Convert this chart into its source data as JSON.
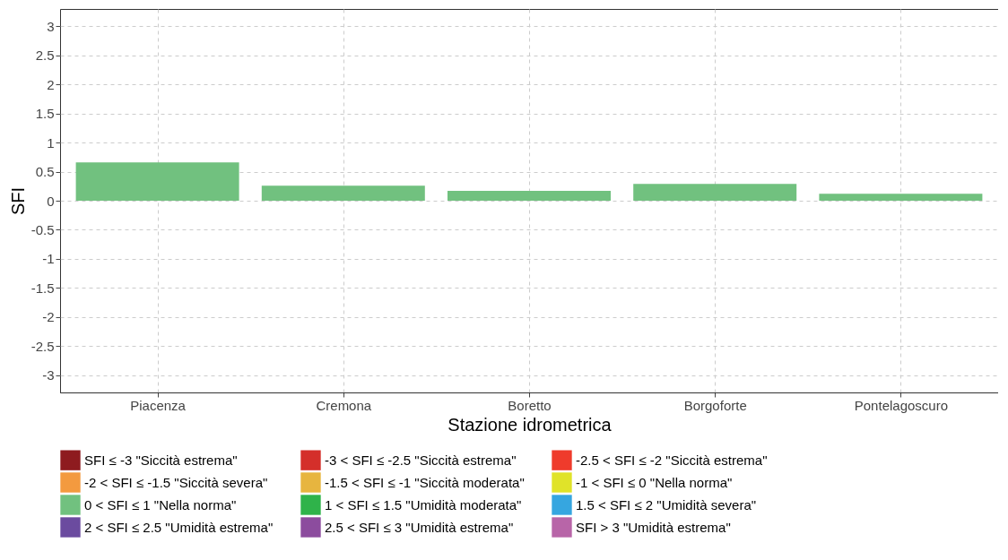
{
  "chart_data": {
    "type": "bar",
    "xlabel": "Stazione idrometrica",
    "ylabel": "SFI",
    "categories": [
      "Piacenza",
      "Cremona",
      "Boretto",
      "Borgoforte",
      "Pontelagoscuro"
    ],
    "series": [
      {
        "name": "SFI ≤ -3 \"Siccità estrema\"",
        "color": "#8e1b1f",
        "values": [
          null,
          null,
          null,
          null,
          null
        ]
      },
      {
        "name": "-3 < SFI ≤ -2.5 \"Siccità estrema\"",
        "color": "#d42f2a",
        "values": [
          null,
          null,
          null,
          null,
          null
        ]
      },
      {
        "name": "-2.5 < SFI ≤ -2 \"Siccità estrema\"",
        "color": "#ef3b2c",
        "values": [
          null,
          null,
          null,
          null,
          null
        ]
      },
      {
        "name": "-2 < SFI ≤ -1.5 \"Siccità severa\"",
        "color": "#f39a3f",
        "values": [
          null,
          null,
          null,
          null,
          null
        ]
      },
      {
        "name": "-1.5 < SFI ≤ -1 \"Siccità moderata\"",
        "color": "#e7b53f",
        "values": [
          null,
          null,
          null,
          null,
          null
        ]
      },
      {
        "name": "-1 < SFI ≤ 0 \"Nella norma\"",
        "color": "#e0e329",
        "values": [
          null,
          null,
          null,
          null,
          null
        ]
      },
      {
        "name": "0 < SFI ≤ 1 \"Nella norma\"",
        "color": "#71c17f",
        "values": [
          0.66,
          0.26,
          0.17,
          0.29,
          0.12
        ]
      },
      {
        "name": "1 < SFI ≤ 1.5 \"Umidità moderata\"",
        "color": "#2fb34a",
        "values": [
          null,
          null,
          null,
          null,
          null
        ]
      },
      {
        "name": "1.5 < SFI ≤ 2 \"Umidità severa\"",
        "color": "#36a6e0",
        "values": [
          null,
          null,
          null,
          null,
          null
        ]
      },
      {
        "name": "2 < SFI ≤ 2.5 \"Umidità estrema\"",
        "color": "#6b4b9f",
        "values": [
          null,
          null,
          null,
          null,
          null
        ]
      },
      {
        "name": "2.5 < SFI ≤ 3 \"Umidità estrema\"",
        "color": "#8c4c9e",
        "values": [
          null,
          null,
          null,
          null,
          null
        ]
      },
      {
        "name": "SFI > 3 \"Umidità estrema\"",
        "color": "#b865a8",
        "values": [
          null,
          null,
          null,
          null,
          null
        ]
      }
    ],
    "ylim": [
      -3.3,
      3.3
    ],
    "yticks": [
      -3,
      -2.5,
      -2,
      -1.5,
      -1,
      -0.5,
      0,
      0.5,
      1,
      1.5,
      2,
      2.5,
      3
    ],
    "grid": true,
    "legend": "bottom"
  }
}
